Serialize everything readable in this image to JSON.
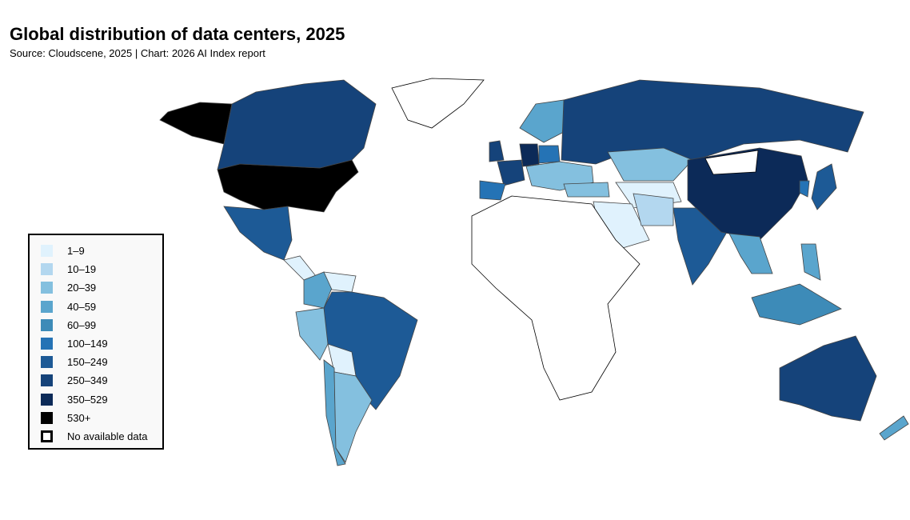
{
  "chart_data": {
    "type": "choropleth",
    "title": "Global distribution of data centers, 2025",
    "subtitle": "Source: Cloudscene, 2025 | Chart: 2026 AI Index report",
    "bins": [
      {
        "label": "1–9",
        "color": "#e0f2fd"
      },
      {
        "label": "10–19",
        "color": "#b3d7ef"
      },
      {
        "label": "20–39",
        "color": "#84c0df"
      },
      {
        "label": "40–59",
        "color": "#5aa5cd"
      },
      {
        "label": "60–99",
        "color": "#3d8bb8"
      },
      {
        "label": "100–149",
        "color": "#2573b5"
      },
      {
        "label": "150–249",
        "color": "#1d5a96"
      },
      {
        "label": "250–349",
        "color": "#15437a"
      },
      {
        "label": "350–529",
        "color": "#0c2a58"
      },
      {
        "label": "530+",
        "color": "#000000"
      },
      {
        "label": "No available data",
        "color": "#ffffff"
      }
    ],
    "regions": [
      {
        "name": "United States",
        "bin": 9
      },
      {
        "name": "Canada",
        "bin": 7
      },
      {
        "name": "Greenland",
        "bin": 10
      },
      {
        "name": "Mexico",
        "bin": 6
      },
      {
        "name": "Central America",
        "bin": 0
      },
      {
        "name": "Colombia",
        "bin": 3
      },
      {
        "name": "Venezuela",
        "bin": 0
      },
      {
        "name": "Brazil",
        "bin": 6
      },
      {
        "name": "Peru",
        "bin": 2
      },
      {
        "name": "Bolivia",
        "bin": 0
      },
      {
        "name": "Chile",
        "bin": 3
      },
      {
        "name": "Argentina",
        "bin": 2
      },
      {
        "name": "United Kingdom",
        "bin": 7
      },
      {
        "name": "France",
        "bin": 7
      },
      {
        "name": "Germany",
        "bin": 8
      },
      {
        "name": "Spain",
        "bin": 5
      },
      {
        "name": "Nordics",
        "bin": 3
      },
      {
        "name": "Poland",
        "bin": 5
      },
      {
        "name": "Eastern Europe",
        "bin": 2
      },
      {
        "name": "Turkey",
        "bin": 2
      },
      {
        "name": "Russia",
        "bin": 7
      },
      {
        "name": "Kazakhstan",
        "bin": 2
      },
      {
        "name": "Central Asia",
        "bin": 0
      },
      {
        "name": "Middle East",
        "bin": 0
      },
      {
        "name": "Iran",
        "bin": 1
      },
      {
        "name": "India",
        "bin": 6
      },
      {
        "name": "China",
        "bin": 8
      },
      {
        "name": "Mongolia",
        "bin": 10
      },
      {
        "name": "Japan",
        "bin": 6
      },
      {
        "name": "South Korea",
        "bin": 5
      },
      {
        "name": "Southeast Asia",
        "bin": 3
      },
      {
        "name": "Philippines",
        "bin": 3
      },
      {
        "name": "Indonesia",
        "bin": 4
      },
      {
        "name": "Australia",
        "bin": 7
      },
      {
        "name": "New Zealand",
        "bin": 3
      },
      {
        "name": "Africa",
        "bin": 10
      }
    ]
  }
}
